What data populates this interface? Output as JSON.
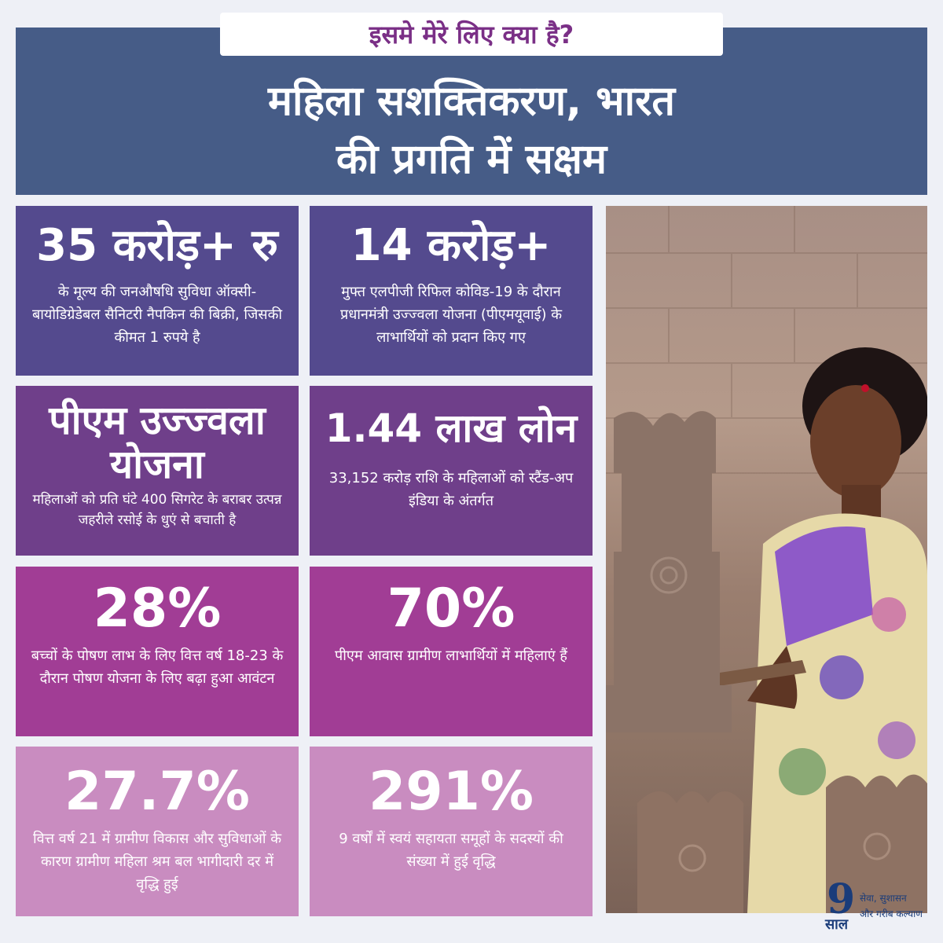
{
  "header": {
    "tag": "इसमे मेरे लिए क्या है?",
    "title_line1": "महिला सशक्तिकरण, भारत",
    "title_line2": "की प्रगति में सक्षम"
  },
  "tiles": [
    {
      "big": "35 करोड़+ रु",
      "desc": "के मूल्य की जनऔषधि सुविधा ऑक्सी-बायोडिग्रेडेबल सैनिटरी नैपकिन की बिक्री, जिसकी कीमत 1 रुपये है"
    },
    {
      "big": "14 करोड़+",
      "desc": "मुफ्त एलपीजी रिफिल कोविड-19 के दौरान प्रधानमंत्री उज्ज्वला योजना (पीएमयूवाई) के लाभार्थियों को प्रदान किए गए"
    },
    {
      "big": "पीएम उज्ज्वला योजना",
      "desc": "महिलाओं को प्रति घंटे 400 सिगरेट के बराबर उत्पन्न जहरीले रसोई के धुएं से बचाती है"
    },
    {
      "big": "1.44 लाख लोन",
      "desc": "33,152 करोड़ राशि के महिलाओं को स्टैंड-अप इंडिया के अंतर्गत"
    },
    {
      "big": "28%",
      "desc": "बच्चों के पोषण लाभ के लिए वित्त वर्ष 18-23 के दौरान पोषण योजना के लिए बढ़ा हुआ आवंटन"
    },
    {
      "big": "70%",
      "desc": "पीएम आवास ग्रामीण लाभार्थियों में महिलाएं हैं"
    },
    {
      "big": "27.7%",
      "desc": "वित्त वर्ष 21 में ग्रामीण विकास और सुविधाओं के कारण ग्रामीण महिला श्रम बल भागीदारी दर में वृद्धि हुई"
    },
    {
      "big": "291%",
      "desc": "9 वर्षों में स्वयं सहायता समूहों के सदस्यों की संख्या में हुई वृद्धि"
    }
  ],
  "logo": {
    "number": "9",
    "years": "साल",
    "line1": "सेवा, सुशासन",
    "line2": "और गरीब कल्याण"
  },
  "colors": {
    "header": "#465c87",
    "row1": "#544a8e",
    "row2": "#6f3f8a",
    "row3": "#a13d95",
    "row4": "#c98cc0",
    "tag_text": "#7a2f86"
  }
}
